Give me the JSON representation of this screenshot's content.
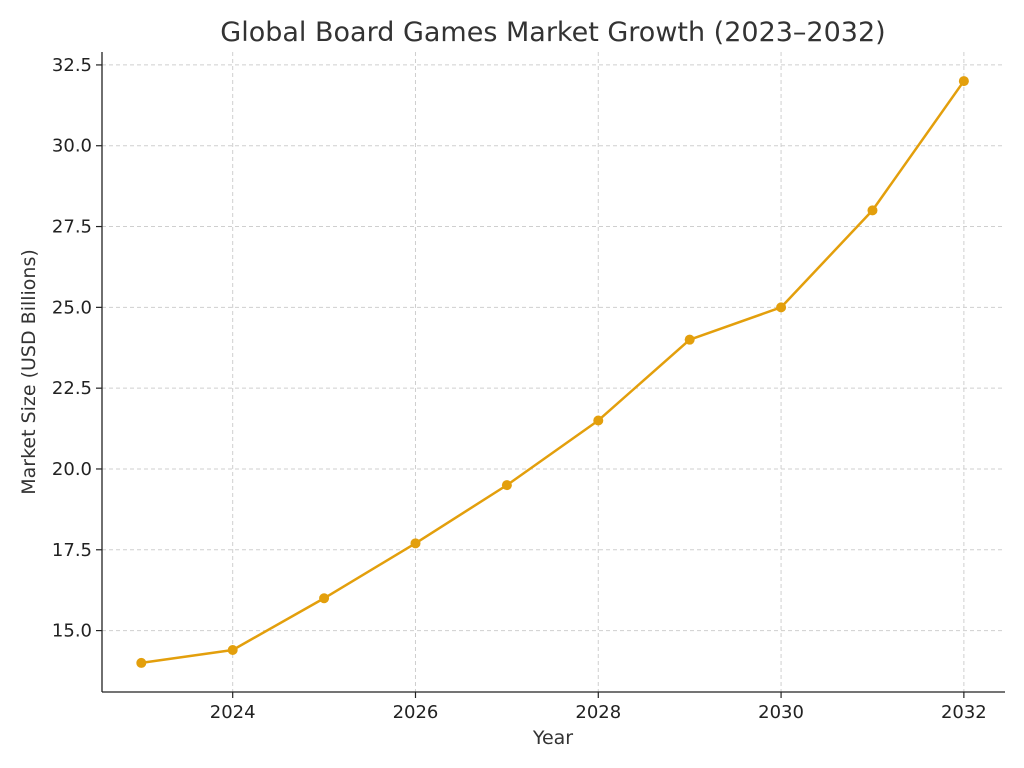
{
  "chart_data": {
    "type": "line",
    "title": "Global Board Games Market Growth (2023–2032)",
    "xlabel": "Year",
    "ylabel": "Market Size (USD Billions)",
    "x": [
      2023,
      2024,
      2025,
      2026,
      2027,
      2028,
      2029,
      2030,
      2031,
      2032
    ],
    "series": [
      {
        "values": [
          14.0,
          14.4,
          16.0,
          17.7,
          19.5,
          21.5,
          24.0,
          25.0,
          28.0,
          32.0
        ],
        "color": "#e39f0c",
        "marker": "circle"
      }
    ],
    "xlim": [
      2022.57,
      2032.45
    ],
    "ylim": [
      13.1,
      32.9
    ],
    "xticks": [
      2024,
      2026,
      2028,
      2030,
      2032
    ],
    "xtick_labels": [
      "2024",
      "2026",
      "2028",
      "2030",
      "2032"
    ],
    "yticks": [
      15.0,
      17.5,
      20.0,
      22.5,
      25.0,
      27.5,
      30.0,
      32.5
    ],
    "ytick_labels": [
      "15.0",
      "17.5",
      "20.0",
      "22.5",
      "25.0",
      "27.5",
      "30.0",
      "32.5"
    ],
    "grid": true,
    "legend": "none"
  }
}
